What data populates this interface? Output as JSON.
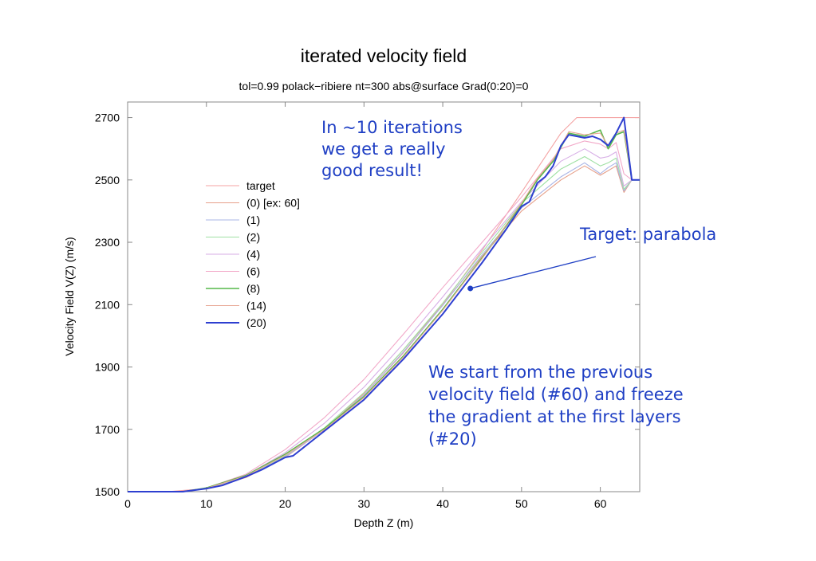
{
  "chart_data": {
    "type": "line",
    "title": "iterated velocity field",
    "subtitle": "tol=0.99 polack−ribiere nt=300 abs@surface Grad(0:20)=0",
    "xlabel": "Depth Z (m)",
    "ylabel": "Velocity Field V(Z) (m/s)",
    "xlim": [
      0,
      65
    ],
    "ylim": [
      1500,
      2750
    ],
    "xticks": [
      0,
      10,
      20,
      30,
      40,
      50,
      60
    ],
    "yticks": [
      1500,
      1700,
      1900,
      2100,
      2300,
      2500,
      2700
    ],
    "grid": false,
    "legend_position": "upper-left",
    "series": [
      {
        "name": "target",
        "color": "#f4a3a3",
        "x": [
          0,
          5,
          10,
          15,
          20,
          25,
          30,
          35,
          40,
          45,
          50,
          55,
          57,
          60,
          65
        ],
        "values": [
          1500,
          1500,
          1510,
          1550,
          1615,
          1700,
          1810,
          1945,
          2100,
          2275,
          2460,
          2650,
          2700,
          2700,
          2700
        ]
      },
      {
        "name": "(0) [ex: 60]",
        "color": "#e6a08a",
        "x": [
          0,
          7,
          10,
          15,
          20,
          25,
          30,
          35,
          40,
          45,
          50,
          55,
          58,
          60,
          61,
          62,
          63,
          64,
          65
        ],
        "values": [
          1500,
          1500,
          1510,
          1545,
          1610,
          1700,
          1815,
          1955,
          2100,
          2255,
          2400,
          2500,
          2545,
          2515,
          2530,
          2545,
          2460,
          2500,
          2500
        ]
      },
      {
        "name": "(1)",
        "color": "#a9b4e6",
        "x": [
          0,
          7,
          10,
          15,
          20,
          25,
          30,
          35,
          40,
          45,
          50,
          55,
          58,
          60,
          61,
          62,
          63,
          64,
          65
        ],
        "values": [
          1500,
          1500,
          1510,
          1548,
          1612,
          1700,
          1810,
          1948,
          2098,
          2260,
          2410,
          2510,
          2555,
          2520,
          2540,
          2555,
          2465,
          2500,
          2500
        ]
      },
      {
        "name": "(2)",
        "color": "#9fe0a3",
        "x": [
          0,
          7,
          10,
          15,
          20,
          25,
          30,
          35,
          40,
          45,
          50,
          55,
          58,
          60,
          61,
          62,
          63,
          64,
          65
        ],
        "values": [
          1500,
          1500,
          1510,
          1550,
          1615,
          1705,
          1818,
          1955,
          2105,
          2268,
          2425,
          2535,
          2575,
          2545,
          2555,
          2570,
          2470,
          2500,
          2500
        ]
      },
      {
        "name": "(4)",
        "color": "#d7aee6",
        "x": [
          0,
          7,
          10,
          15,
          20,
          25,
          30,
          35,
          40,
          45,
          50,
          55,
          58,
          60,
          61,
          62,
          63,
          64,
          65
        ],
        "values": [
          1500,
          1500,
          1510,
          1552,
          1625,
          1720,
          1835,
          1975,
          2125,
          2280,
          2430,
          2560,
          2600,
          2570,
          2575,
          2590,
          2480,
          2500,
          2500
        ]
      },
      {
        "name": "(6)",
        "color": "#f2a8c8",
        "x": [
          0,
          7,
          10,
          15,
          20,
          25,
          30,
          35,
          40,
          45,
          50,
          55,
          58,
          60,
          61,
          62,
          63,
          64,
          65
        ],
        "values": [
          1500,
          1500,
          1512,
          1556,
          1635,
          1738,
          1860,
          2005,
          2155,
          2300,
          2445,
          2600,
          2625,
          2615,
          2600,
          2620,
          2520,
          2500,
          2500
        ]
      },
      {
        "name": "(8)",
        "color": "#55b84a",
        "x": [
          0,
          7,
          10,
          15,
          20,
          25,
          30,
          35,
          40,
          45,
          50,
          52,
          54,
          56,
          58,
          60,
          61,
          62,
          63,
          64,
          65
        ],
        "values": [
          1500,
          1500,
          1512,
          1552,
          1620,
          1703,
          1805,
          1935,
          2085,
          2250,
          2420,
          2500,
          2560,
          2650,
          2640,
          2660,
          2600,
          2645,
          2655,
          2500,
          2500
        ]
      },
      {
        "name": "(14)",
        "color": "#e8a896",
        "x": [
          0,
          7,
          10,
          15,
          20,
          25,
          30,
          35,
          40,
          45,
          50,
          52,
          54,
          56,
          58,
          60,
          61,
          62,
          63,
          64,
          65
        ],
        "values": [
          1500,
          1500,
          1511,
          1550,
          1617,
          1700,
          1802,
          1932,
          2082,
          2248,
          2425,
          2505,
          2565,
          2655,
          2645,
          2650,
          2610,
          2650,
          2660,
          2500,
          2500
        ]
      },
      {
        "name": "(20)",
        "color": "#2e3fd0",
        "x": [
          0,
          7,
          10,
          12,
          15,
          17,
          20,
          21,
          25,
          30,
          35,
          40,
          45,
          48,
          50,
          51,
          52,
          53,
          54,
          55,
          56,
          57,
          58,
          59,
          60,
          61,
          62,
          63,
          64,
          65
        ],
        "values": [
          1500,
          1500,
          1510,
          1520,
          1548,
          1570,
          1610,
          1615,
          1695,
          1795,
          1925,
          2070,
          2235,
          2340,
          2415,
          2430,
          2490,
          2510,
          2545,
          2610,
          2645,
          2640,
          2635,
          2640,
          2630,
          2610,
          2650,
          2700,
          2500,
          2500
        ]
      }
    ],
    "annotations": [
      {
        "text": [
          "In  ~10  iterations",
          "we  get  a  really",
          "good  result!"
        ]
      },
      {
        "text": [
          "Target:  parabola"
        ],
        "points_to": {
          "x": 43.5,
          "y": 2152
        }
      },
      {
        "text": [
          "We start from the previous",
          "velocity field (#60) and freeze",
          "the gradient at the first layers",
          "(#20)"
        ]
      }
    ]
  }
}
